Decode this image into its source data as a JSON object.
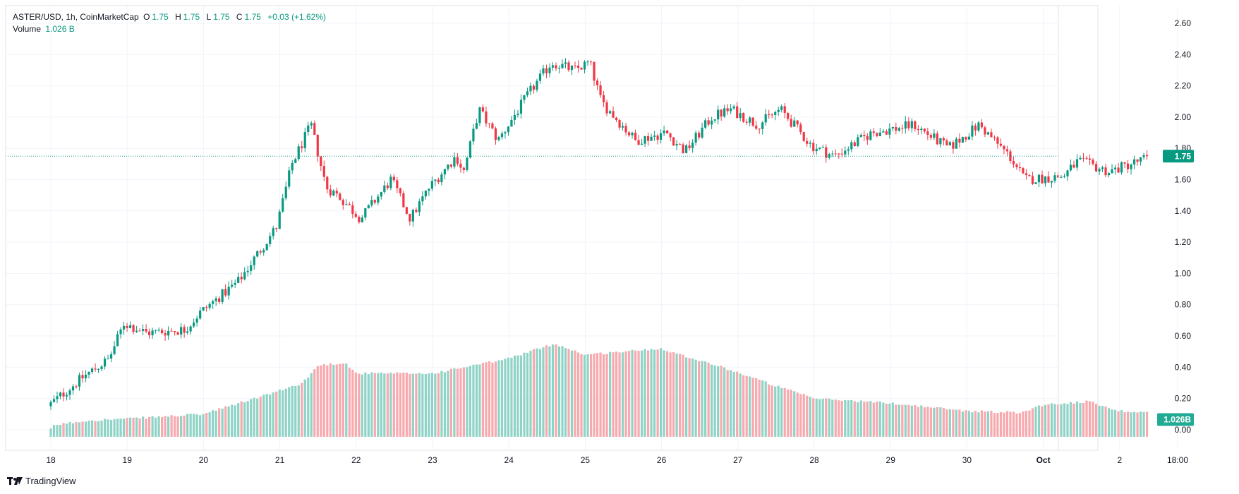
{
  "legend": {
    "symbol": "ASTER/USD, 1h, CoinMarketCap",
    "open_label": "O",
    "open": "1.75",
    "high_label": "H",
    "high": "1.75",
    "low_label": "L",
    "low": "1.75",
    "close_label": "C",
    "close": "1.75",
    "change": "+0.03 (+1.62%)",
    "volume_label": "Volume",
    "volume": "1.026 B"
  },
  "brand": "TradingView",
  "colors": {
    "up": "#089981",
    "down": "#f23645",
    "up_vol": "#8fd3c6",
    "down_vol": "#f7a9ae",
    "grid": "#f0f3fa"
  },
  "chart_data": {
    "type": "candlestick",
    "title": "ASTER/USD, 1h, CoinMarketCap",
    "xlabel": "",
    "ylabel": "",
    "ylim": [
      -0.1,
      2.7
    ],
    "y_ticks": [
      "2.60",
      "2.40",
      "2.20",
      "2.00",
      "1.80",
      "1.60",
      "1.40",
      "1.20",
      "1.00",
      "0.80",
      "0.60",
      "0.40",
      "0.20",
      "0.00"
    ],
    "x_ticks": [
      "18",
      "19",
      "20",
      "21",
      "22",
      "23",
      "24",
      "25",
      "26",
      "27",
      "28",
      "29",
      "30",
      "Oct",
      "2",
      "18:00"
    ],
    "last_price": 1.75,
    "last_price_label": "1.75",
    "last_volume_label": "1.026B",
    "price_path": [
      [
        0,
        0.15
      ],
      [
        0.5,
        0.35
      ],
      [
        0.8,
        0.45
      ],
      [
        1.0,
        0.68
      ],
      [
        1.3,
        0.62
      ],
      [
        1.8,
        0.64
      ],
      [
        2.0,
        0.75
      ],
      [
        2.5,
        0.95
      ],
      [
        3.0,
        1.3
      ],
      [
        3.2,
        1.7
      ],
      [
        3.45,
        1.95
      ],
      [
        3.65,
        1.55
      ],
      [
        3.8,
        1.5
      ],
      [
        4.1,
        1.35
      ],
      [
        4.5,
        1.6
      ],
      [
        4.75,
        1.35
      ],
      [
        5.0,
        1.55
      ],
      [
        5.35,
        1.75
      ],
      [
        5.45,
        1.65
      ],
      [
        5.65,
        2.05
      ],
      [
        5.9,
        1.85
      ],
      [
        6.3,
        2.15
      ],
      [
        6.6,
        2.35
      ],
      [
        6.9,
        2.3
      ],
      [
        7.1,
        2.35
      ],
      [
        7.25,
        2.1
      ],
      [
        7.7,
        1.85
      ],
      [
        8.1,
        1.9
      ],
      [
        8.35,
        1.78
      ],
      [
        8.7,
        2.0
      ],
      [
        8.95,
        2.05
      ],
      [
        9.3,
        1.95
      ],
      [
        9.6,
        2.05
      ],
      [
        10.0,
        1.82
      ],
      [
        10.3,
        1.75
      ],
      [
        10.8,
        1.9
      ],
      [
        11.35,
        1.95
      ],
      [
        11.8,
        1.8
      ],
      [
        12.2,
        1.95
      ],
      [
        12.6,
        1.75
      ],
      [
        12.8,
        1.6
      ],
      [
        13.3,
        1.62
      ],
      [
        13.5,
        1.72
      ],
      [
        13.9,
        1.65
      ],
      [
        14.3,
        1.72
      ],
      [
        14.4,
        1.74
      ]
    ],
    "volume_path": [
      [
        0,
        0.0
      ],
      [
        0.05,
        0.03
      ],
      [
        0.5,
        0.06
      ],
      [
        1.0,
        0.07
      ],
      [
        2.0,
        0.1
      ],
      [
        3.0,
        0.25
      ],
      [
        3.3,
        0.3
      ],
      [
        3.5,
        0.41
      ],
      [
        3.85,
        0.43
      ],
      [
        4.0,
        0.36
      ],
      [
        5.0,
        0.36
      ],
      [
        5.95,
        0.45
      ],
      [
        6.6,
        0.55
      ],
      [
        7.0,
        0.48
      ],
      [
        7.5,
        0.5
      ],
      [
        8.0,
        0.52
      ],
      [
        8.25,
        0.48
      ],
      [
        8.8,
        0.4
      ],
      [
        9.5,
        0.28
      ],
      [
        10.0,
        0.2
      ],
      [
        11.0,
        0.17
      ],
      [
        12.0,
        0.12
      ],
      [
        12.7,
        0.11
      ],
      [
        13.0,
        0.16
      ],
      [
        13.6,
        0.18
      ],
      [
        14.0,
        0.12
      ],
      [
        14.4,
        0.11
      ]
    ],
    "series": [
      {
        "name": "",
        "kind": "ohlc"
      },
      {
        "name": "Volume",
        "kind": "volume"
      }
    ]
  }
}
